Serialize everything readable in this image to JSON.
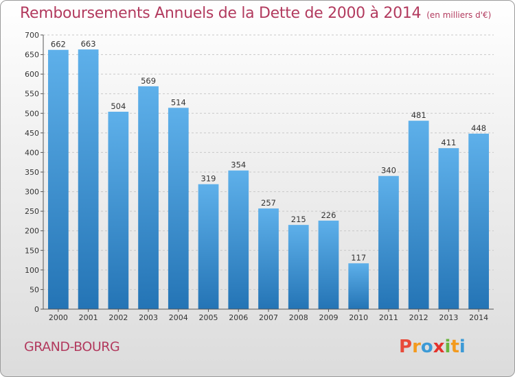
{
  "chart_data": {
    "type": "bar",
    "title": "Remboursements Annuels de la Dette de 2000 à 2014",
    "subtitle": "(en milliers d'€)",
    "categories": [
      "2000",
      "2001",
      "2002",
      "2003",
      "2004",
      "2005",
      "2006",
      "2007",
      "2008",
      "2009",
      "2010",
      "2011",
      "2012",
      "2013",
      "2014"
    ],
    "values": [
      662,
      663,
      504,
      569,
      514,
      319,
      354,
      257,
      215,
      226,
      117,
      340,
      481,
      411,
      448
    ],
    "yticks": [
      0,
      50,
      100,
      150,
      200,
      250,
      300,
      350,
      400,
      450,
      500,
      550,
      600,
      650,
      700
    ],
    "ylim": [
      0,
      700
    ],
    "xlabel": "",
    "ylabel": "",
    "grid": true,
    "bar_color_top": "#5eb0ea",
    "bar_color_bottom": "#2474b5"
  },
  "footer": {
    "commune": "GRAND-BOURG",
    "brand": "Proxiti",
    "brand_colors": [
      "#e84b3a",
      "#f39a1e",
      "#3c9ad6",
      "#e4332c",
      "#6ab43e",
      "#f39a1e",
      "#3c9ad6"
    ]
  },
  "colors": {
    "title": "#b23a5e",
    "grid": "#c8c8c8",
    "axis": "#555555"
  }
}
